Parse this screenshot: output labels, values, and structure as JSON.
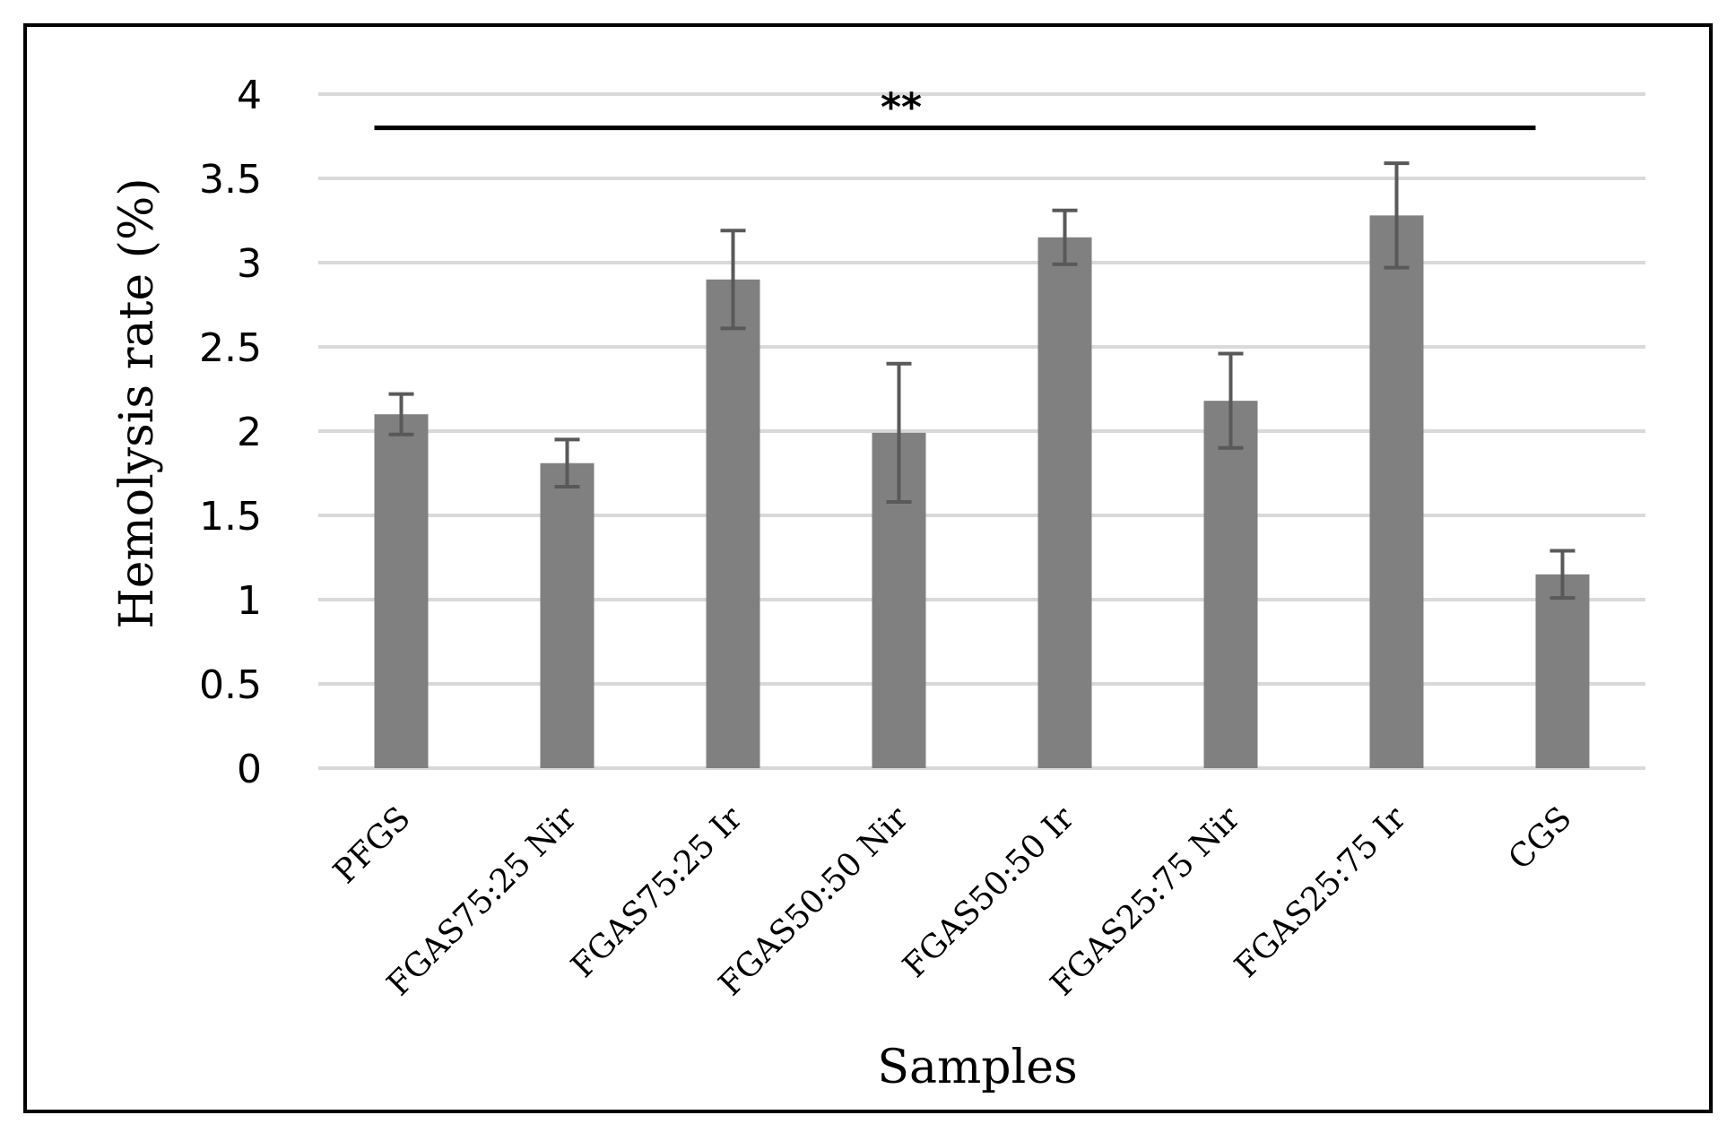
{
  "chart_data": {
    "type": "bar",
    "title": "",
    "xlabel": "Samples",
    "ylabel": "Hemolysis rate (%)",
    "ylim": [
      0,
      4
    ],
    "yticks": [
      "0",
      "0.5",
      "1",
      "1.5",
      "2",
      "2.5",
      "3",
      "3.5",
      "4"
    ],
    "grid": true,
    "legend": "none",
    "categories": [
      "PFGS",
      "FGAS75:25 Nir",
      "FGAS75:25 Ir",
      "FGAS50:50 Nir",
      "FGAS50:50 Ir",
      "FGAS25:75 Nir",
      "FGAS25:75 Ir",
      "CGS"
    ],
    "values": [
      2.1,
      1.81,
      2.9,
      1.99,
      3.15,
      2.18,
      3.28,
      1.15
    ],
    "error_bars": [
      0.12,
      0.14,
      0.29,
      0.41,
      0.16,
      0.28,
      0.31,
      0.14
    ],
    "significance": {
      "label": "**",
      "from_category": "PFGS",
      "to_category": "CGS",
      "y": 3.8
    },
    "colors": {
      "bar": "#808080",
      "error_bar": "#595959",
      "grid": "#d9d9d9"
    }
  }
}
